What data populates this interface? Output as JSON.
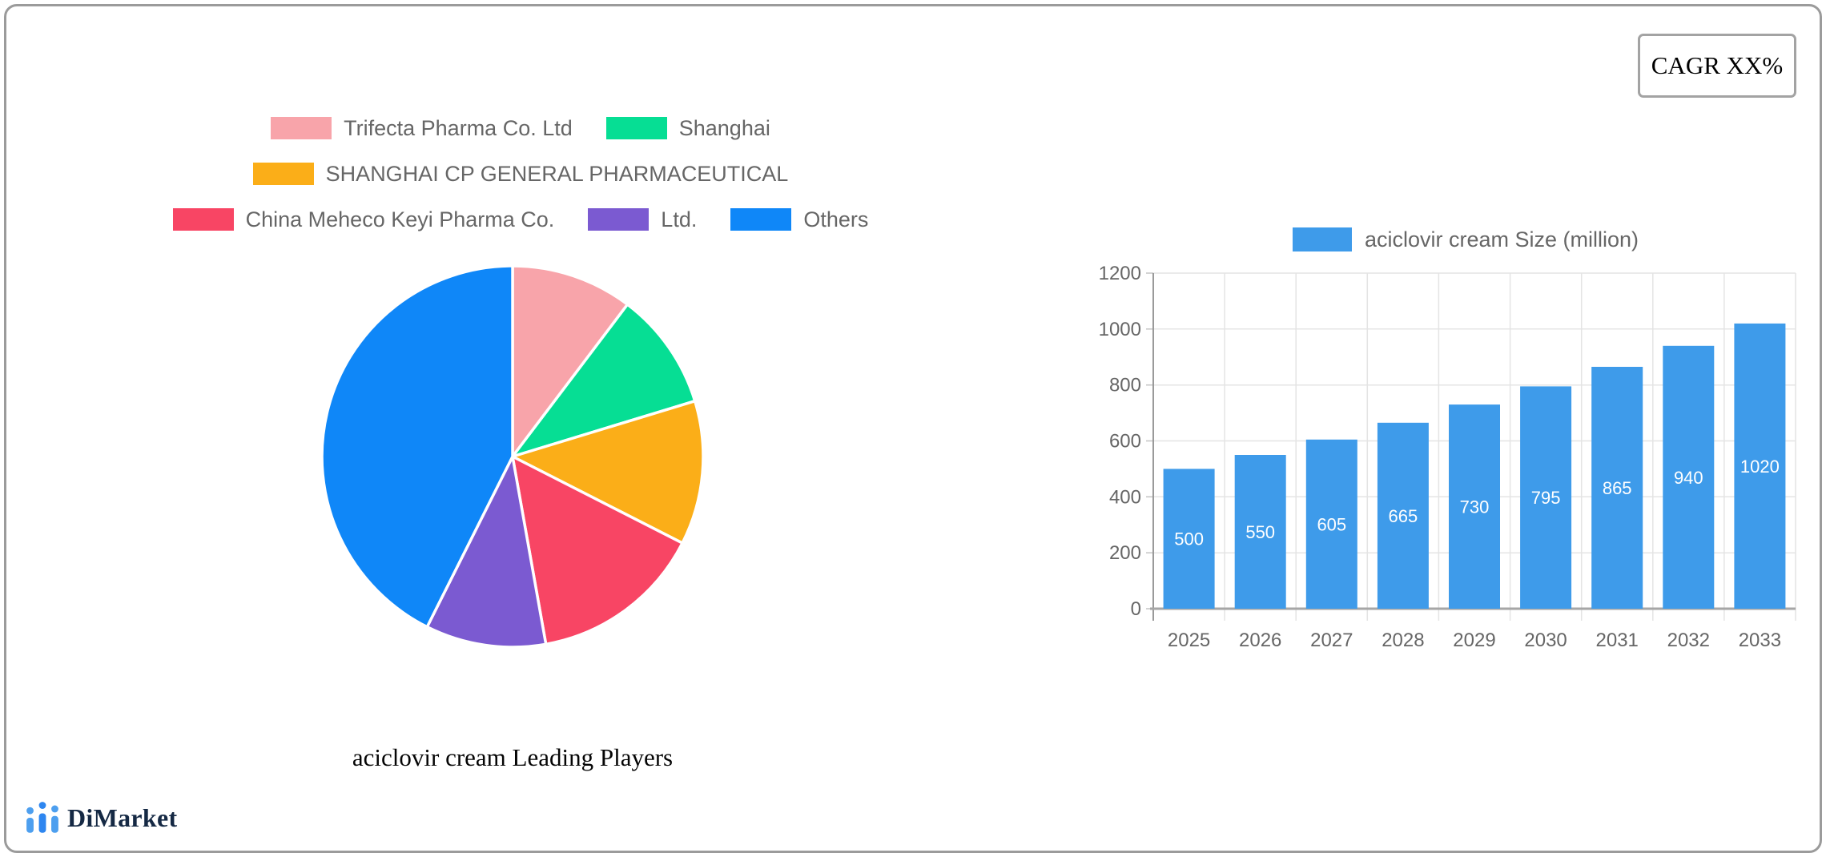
{
  "page": {
    "cagr_label": "CAGR XX%",
    "brand_name": "DiMarket",
    "accent_blue": "#2E86F0",
    "text_gray": "#666666"
  },
  "chart_data": [
    {
      "type": "pie",
      "title": "aciclovir cream Leading Players",
      "labels": [
        "Trifecta Pharma Co. Ltd",
        "Shanghai",
        "SHANGHAI CP GENERAL PHARMACEUTICAL",
        "China Meheco Keyi Pharma Co.",
        "Ltd.",
        "Others"
      ],
      "values": [
        10.3,
        10.0,
        12.2,
        14.7,
        10.2,
        42.6
      ],
      "values_note": "percent of pie, estimated from slice angles",
      "colors": [
        "#F8A4AA",
        "#06DE94",
        "#FBAE18",
        "#F84564",
        "#7B5AD1",
        "#0F87F8"
      ],
      "legend_rows": [
        [
          0,
          1
        ],
        [
          2
        ],
        [
          3,
          4,
          5
        ]
      ],
      "start_angle_deg": 0,
      "direction": "clockwise",
      "slice_border_color": "#ffffff"
    },
    {
      "type": "bar",
      "legend": "aciclovir cream Size (million)",
      "legend_position": "top",
      "categories": [
        "2025",
        "2026",
        "2027",
        "2028",
        "2029",
        "2030",
        "2031",
        "2032",
        "2033"
      ],
      "values": [
        500,
        550,
        605,
        665,
        730,
        795,
        865,
        940,
        1020
      ],
      "bar_color": "#3E9BEA",
      "value_label_color": "#ffffff",
      "ylim": [
        0,
        1200
      ],
      "y_ticks": [
        0,
        200,
        400,
        600,
        800,
        1000,
        1200
      ],
      "grid": true
    }
  ]
}
